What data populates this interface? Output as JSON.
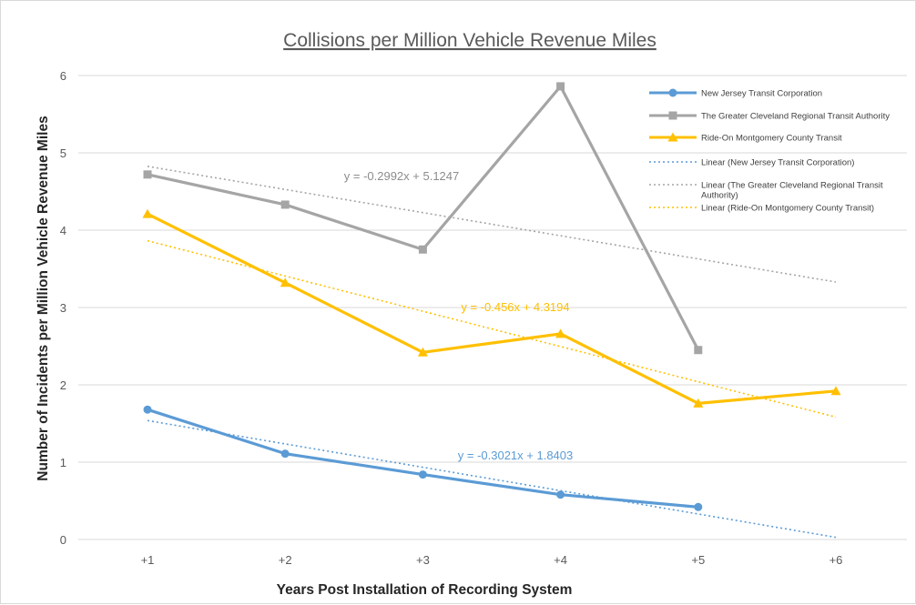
{
  "chart_data": {
    "type": "line",
    "title": "Collisions per Million Vehicle Revenue Miles",
    "xlabel": "Years Post Installation of Recording System",
    "ylabel": "Number of Incidents per Million Vehicle Revenue Miles",
    "categories": [
      "+1",
      "+2",
      "+3",
      "+4",
      "+5",
      "+6"
    ],
    "ylim": [
      0,
      6
    ],
    "yticks": [
      "0",
      "1",
      "2",
      "3",
      "4",
      "5",
      "6"
    ],
    "grid": true,
    "legend_position": "top-right",
    "series": [
      {
        "name": "New Jersey Transit Corporation",
        "values": [
          1.68,
          1.11,
          0.84,
          0.58,
          0.42,
          null
        ],
        "color": "#5b9bd5",
        "marker": "circle",
        "trendline": {
          "name": "Linear (New Jersey Transit Corporation)",
          "slope": -0.3021,
          "intercept": 1.8403,
          "equation": "y = -0.3021x  + 1.8403"
        }
      },
      {
        "name": "The Greater Cleveland Regional Transit Authority",
        "values": [
          4.72,
          4.33,
          3.75,
          5.86,
          2.45,
          null
        ],
        "color": "#a5a5a5",
        "marker": "square",
        "trendline": {
          "name": "Linear (The Greater Cleveland Regional Transit Authority)",
          "slope": -0.2992,
          "intercept": 5.1247,
          "equation": "y = -0.2992x  + 5.1247"
        }
      },
      {
        "name": "Ride-On Montgomery County Transit",
        "values": [
          4.21,
          3.32,
          2.42,
          2.66,
          1.76,
          1.92
        ],
        "color": "#ffc000",
        "marker": "triangle",
        "trendline": {
          "name": "Linear (Ride-On Montgomery County Transit)",
          "slope": -0.456,
          "intercept": 4.3194,
          "equation": "y = -0.456x  + 4.3194"
        }
      }
    ]
  }
}
